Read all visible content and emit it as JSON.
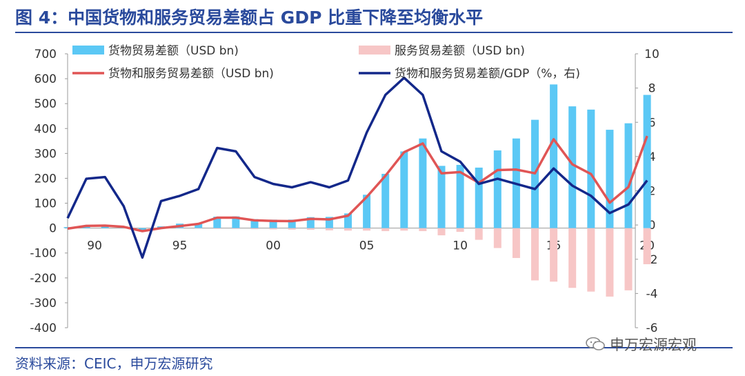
{
  "title": "图 4：中国货物和服务贸易差额占 GDP 比重下降至均衡水平",
  "source": "资料来源：CEIC，申万宏源研究",
  "watermark": "申万宏源宏观",
  "colors": {
    "goods": "#5bc8f5",
    "services": "#f7c6c6",
    "total": "#e05555",
    "ratio": "#13288a",
    "accent": "#2a4a9c"
  },
  "chart_data": {
    "type": "bar",
    "title": "图 4：中国货物和服务贸易差额占 GDP 比重下降至均衡水平",
    "x": [
      1989,
      1990,
      1991,
      1992,
      1993,
      1994,
      1995,
      1996,
      1997,
      1998,
      1999,
      2000,
      2001,
      2002,
      2003,
      2004,
      2005,
      2006,
      2007,
      2008,
      2009,
      2010,
      2011,
      2012,
      2013,
      2014,
      2015,
      2016,
      2017,
      2018,
      2019,
      2020
    ],
    "x_tick_labels": [
      {
        "year": 1990,
        "label": "90"
      },
      {
        "year": 1995,
        "label": "95"
      },
      {
        "year": 2000,
        "label": "00"
      },
      {
        "year": 2005,
        "label": "05"
      },
      {
        "year": 2010,
        "label": "10"
      },
      {
        "year": 2015,
        "label": "15"
      },
      {
        "year": 2020,
        "label": "20"
      }
    ],
    "y_left": {
      "range": [
        -400,
        700
      ],
      "ticks": [
        "700",
        "600",
        "500",
        "400",
        "300",
        "200",
        "100",
        "0",
        "-100",
        "-200",
        "-300",
        "-400"
      ]
    },
    "y_right": {
      "range": [
        -6,
        10
      ],
      "ticks": [
        "10",
        "8",
        "6",
        "4",
        "2",
        "0",
        "-2",
        "-4",
        "-6"
      ]
    },
    "legend": [
      {
        "key": "goods",
        "label": "货物贸易差额（USD bn)"
      },
      {
        "key": "services",
        "label": "服务贸易差额（USD bn)"
      },
      {
        "key": "total",
        "label": "货物和服务贸易差额（USD bn)"
      },
      {
        "key": "ratio",
        "label": "货物和服务贸易差额/GDP（%，右)"
      }
    ],
    "series": [
      {
        "key": "goods",
        "name": "货物贸易差额（USD bn)",
        "chart": "bar",
        "axis": "left",
        "values": [
          4,
          9,
          9,
          5,
          -11,
          7,
          18,
          19,
          46,
          47,
          36,
          34,
          34,
          44,
          45,
          59,
          134,
          218,
          308,
          360,
          250,
          254,
          243,
          312,
          360,
          435,
          577,
          489,
          476,
          395,
          421,
          535
        ]
      },
      {
        "key": "services",
        "name": "服务贸易差额（USD bn)",
        "chart": "bar",
        "axis": "left",
        "values": [
          0,
          0,
          0,
          0,
          0,
          0,
          -1,
          -2,
          -3,
          -3,
          -4,
          -5,
          -6,
          -7,
          -9,
          -10,
          -10,
          -12,
          -10,
          -12,
          -29,
          -15,
          -47,
          -80,
          -120,
          -210,
          -215,
          -240,
          -255,
          -275,
          -250,
          -145
        ]
      },
      {
        "key": "total",
        "name": "货物和服务贸易差额（USD bn)",
        "chart": "line",
        "axis": "left",
        "values": [
          -2,
          9,
          10,
          5,
          -12,
          0,
          8,
          17,
          42,
          42,
          31,
          29,
          28,
          37,
          35,
          50,
          125,
          210,
          305,
          340,
          220,
          225,
          182,
          233,
          235,
          220,
          357,
          256,
          217,
          102,
          165,
          370
        ]
      },
      {
        "key": "ratio",
        "name": "货物和服务贸易差额/GDP（%，右)",
        "chart": "line",
        "axis": "right",
        "values": [
          0.4,
          2.7,
          2.8,
          1.1,
          -1.9,
          1.4,
          1.7,
          2.1,
          4.5,
          4.3,
          2.8,
          2.4,
          2.2,
          2.5,
          2.2,
          2.6,
          5.4,
          7.6,
          8.6,
          7.6,
          4.3,
          3.7,
          2.4,
          2.7,
          2.4,
          2.1,
          3.3,
          2.3,
          1.7,
          0.7,
          1.2,
          2.6
        ]
      }
    ]
  }
}
